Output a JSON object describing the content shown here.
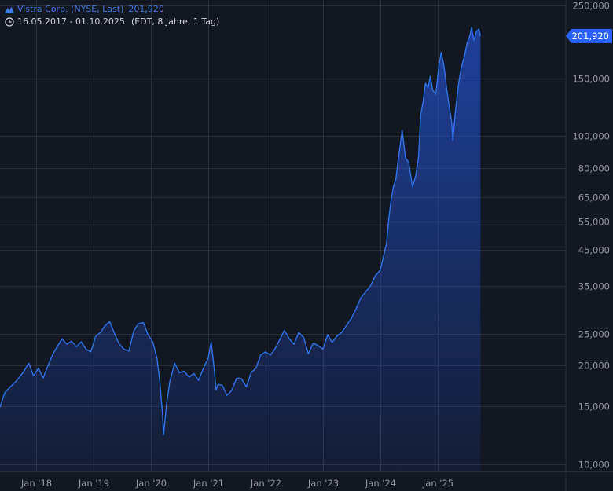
{
  "header": {
    "instrument": "Vistra Corp. (NYSE, Last)",
    "last_value": "201,920",
    "date_range": "16.05.2017 - 01.10.2025",
    "meta": "(EDT, 8 Jahre, 1 Tag)",
    "icons": [
      "mountain-chart-icon",
      "clock-icon"
    ]
  },
  "colors": {
    "background": "#131722",
    "grid": "#2a2e39",
    "line": "#2e73e8",
    "label": "#9598a1",
    "badge": "#2962ff"
  },
  "chart_data": {
    "type": "area",
    "yscale": "log",
    "ylim": [
      9500,
      260000
    ],
    "xlim": [
      "2017-05-16",
      "2025-10-01"
    ],
    "y_ticks": [
      {
        "value": 250000,
        "label": "250,000"
      },
      {
        "value": 150000,
        "label": "150,000"
      },
      {
        "value": 100000,
        "label": "100,000"
      },
      {
        "value": 80000,
        "label": "80,000"
      },
      {
        "value": 65000,
        "label": "65,000"
      },
      {
        "value": 55000,
        "label": "55,000"
      },
      {
        "value": 45000,
        "label": "45,000"
      },
      {
        "value": 35000,
        "label": "35,000"
      },
      {
        "value": 25000,
        "label": "25,000"
      },
      {
        "value": 20000,
        "label": "20,000"
      },
      {
        "value": 15000,
        "label": "15,000"
      },
      {
        "value": 10000,
        "label": "10,000"
      }
    ],
    "x_ticks": [
      {
        "date": "2018-01-01",
        "label": "Jan '18"
      },
      {
        "date": "2019-01-01",
        "label": "Jan '19"
      },
      {
        "date": "2020-01-01",
        "label": "Jan '20"
      },
      {
        "date": "2021-01-01",
        "label": "Jan '21"
      },
      {
        "date": "2022-01-01",
        "label": "Jan '22"
      },
      {
        "date": "2023-01-01",
        "label": "Jan '23"
      },
      {
        "date": "2024-01-01",
        "label": "Jan '24"
      },
      {
        "date": "2025-01-01",
        "label": "Jan '25"
      }
    ],
    "last_value": 201920,
    "last_label": "201,920",
    "grid": true,
    "points": [
      [
        "2017-05-16",
        14900
      ],
      [
        "2017-06-15",
        16500
      ],
      [
        "2017-07-20",
        17200
      ],
      [
        "2017-09-01",
        18000
      ],
      [
        "2017-10-15",
        19200
      ],
      [
        "2017-11-15",
        20300
      ],
      [
        "2017-12-15",
        18600
      ],
      [
        "2018-01-15",
        19600
      ],
      [
        "2018-02-15",
        18300
      ],
      [
        "2018-03-15",
        19800
      ],
      [
        "2018-04-15",
        21500
      ],
      [
        "2018-05-15",
        22800
      ],
      [
        "2018-06-15",
        24100
      ],
      [
        "2018-07-15",
        23200
      ],
      [
        "2018-08-15",
        23700
      ],
      [
        "2018-09-15",
        22800
      ],
      [
        "2018-10-15",
        23600
      ],
      [
        "2018-11-15",
        22400
      ],
      [
        "2018-12-15",
        22000
      ],
      [
        "2019-01-15",
        24500
      ],
      [
        "2019-02-15",
        25200
      ],
      [
        "2019-03-15",
        26400
      ],
      [
        "2019-04-15",
        27200
      ],
      [
        "2019-05-15",
        25000
      ],
      [
        "2019-06-15",
        23200
      ],
      [
        "2019-07-15",
        22400
      ],
      [
        "2019-08-15",
        22100
      ],
      [
        "2019-09-15",
        25500
      ],
      [
        "2019-10-15",
        26800
      ],
      [
        "2019-11-15",
        27000
      ],
      [
        "2019-12-15",
        24800
      ],
      [
        "2020-01-15",
        23500
      ],
      [
        "2020-02-10",
        21000
      ],
      [
        "2020-02-28",
        17800
      ],
      [
        "2020-03-16",
        14200
      ],
      [
        "2020-03-23",
        12300
      ],
      [
        "2020-04-10",
        15200
      ],
      [
        "2020-05-01",
        17800
      ],
      [
        "2020-06-01",
        20300
      ],
      [
        "2020-07-01",
        19000
      ],
      [
        "2020-08-01",
        19200
      ],
      [
        "2020-09-01",
        18400
      ],
      [
        "2020-10-01",
        18900
      ],
      [
        "2020-11-01",
        18000
      ],
      [
        "2020-12-01",
        19600
      ],
      [
        "2021-01-01",
        21000
      ],
      [
        "2021-01-20",
        23600
      ],
      [
        "2021-02-10",
        19200
      ],
      [
        "2021-02-20",
        16800
      ],
      [
        "2021-03-05",
        17500
      ],
      [
        "2021-04-01",
        17400
      ],
      [
        "2021-05-01",
        16200
      ],
      [
        "2021-06-01",
        16800
      ],
      [
        "2021-07-01",
        18300
      ],
      [
        "2021-08-01",
        18200
      ],
      [
        "2021-09-01",
        17200
      ],
      [
        "2021-10-01",
        19000
      ],
      [
        "2021-11-01",
        19600
      ],
      [
        "2021-12-01",
        21500
      ],
      [
        "2022-01-01",
        22000
      ],
      [
        "2022-02-01",
        21500
      ],
      [
        "2022-03-01",
        22400
      ],
      [
        "2022-04-01",
        23900
      ],
      [
        "2022-05-01",
        25600
      ],
      [
        "2022-06-01",
        24100
      ],
      [
        "2022-07-01",
        23200
      ],
      [
        "2022-08-01",
        25200
      ],
      [
        "2022-09-01",
        24300
      ],
      [
        "2022-10-01",
        21700
      ],
      [
        "2022-11-01",
        23400
      ],
      [
        "2022-12-01",
        23000
      ],
      [
        "2023-01-01",
        22400
      ],
      [
        "2023-02-01",
        24800
      ],
      [
        "2023-03-01",
        23500
      ],
      [
        "2023-04-01",
        24600
      ],
      [
        "2023-05-01",
        25200
      ],
      [
        "2023-06-01",
        26500
      ],
      [
        "2023-07-01",
        27800
      ],
      [
        "2023-08-01",
        29800
      ],
      [
        "2023-09-01",
        32200
      ],
      [
        "2023-10-01",
        33500
      ],
      [
        "2023-11-01",
        35000
      ],
      [
        "2023-12-01",
        37500
      ],
      [
        "2024-01-01",
        39000
      ],
      [
        "2024-01-20",
        42500
      ],
      [
        "2024-02-10",
        47000
      ],
      [
        "2024-02-25",
        56000
      ],
      [
        "2024-03-10",
        63500
      ],
      [
        "2024-03-25",
        70000
      ],
      [
        "2024-04-10",
        74000
      ],
      [
        "2024-05-01",
        89000
      ],
      [
        "2024-05-20",
        104000
      ],
      [
        "2024-06-10",
        86000
      ],
      [
        "2024-07-01",
        83000
      ],
      [
        "2024-07-25",
        70000
      ],
      [
        "2024-08-15",
        76000
      ],
      [
        "2024-09-01",
        86000
      ],
      [
        "2024-09-15",
        116000
      ],
      [
        "2024-10-01",
        128000
      ],
      [
        "2024-10-15",
        145000
      ],
      [
        "2024-11-01",
        140000
      ],
      [
        "2024-11-15",
        152000
      ],
      [
        "2024-12-01",
        138000
      ],
      [
        "2024-12-20",
        134000
      ],
      [
        "2025-01-10",
        165000
      ],
      [
        "2025-01-24",
        180000
      ],
      [
        "2025-02-10",
        164000
      ],
      [
        "2025-02-27",
        140000
      ],
      [
        "2025-03-15",
        124000
      ],
      [
        "2025-04-01",
        110000
      ],
      [
        "2025-04-08",
        97000
      ],
      [
        "2025-04-25",
        120000
      ],
      [
        "2025-05-15",
        145000
      ],
      [
        "2025-06-01",
        162000
      ],
      [
        "2025-06-20",
        175000
      ],
      [
        "2025-07-10",
        194000
      ],
      [
        "2025-07-25",
        202000
      ],
      [
        "2025-08-05",
        214000
      ],
      [
        "2025-08-20",
        196000
      ],
      [
        "2025-09-05",
        208000
      ],
      [
        "2025-09-20",
        212000
      ],
      [
        "2025-10-01",
        201920
      ]
    ]
  }
}
